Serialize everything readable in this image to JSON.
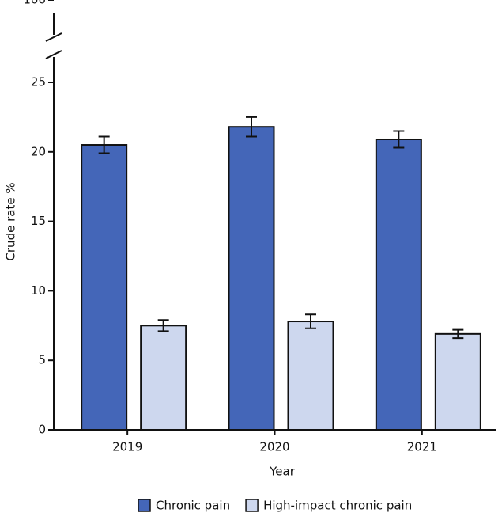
{
  "chart_data": {
    "type": "bar",
    "categories": [
      "2019",
      "2020",
      "2021"
    ],
    "x_label": "Year",
    "y_label": "Crude rate %",
    "series": [
      {
        "name": "Chronic pain",
        "color": "#4466b8",
        "values": [
          20.5,
          21.8,
          20.9
        ],
        "errors": [
          0.6,
          0.7,
          0.6
        ]
      },
      {
        "name": "High-impact chronic pain",
        "color": "#cdd7ee",
        "values": [
          7.5,
          7.8,
          6.9
        ],
        "errors": [
          0.4,
          0.5,
          0.3
        ]
      }
    ],
    "ylim": [
      0,
      100
    ],
    "yticks": [
      0,
      5,
      10,
      15,
      20,
      25,
      100
    ],
    "y_break": [
      25,
      100
    ],
    "legend": "bottom"
  }
}
